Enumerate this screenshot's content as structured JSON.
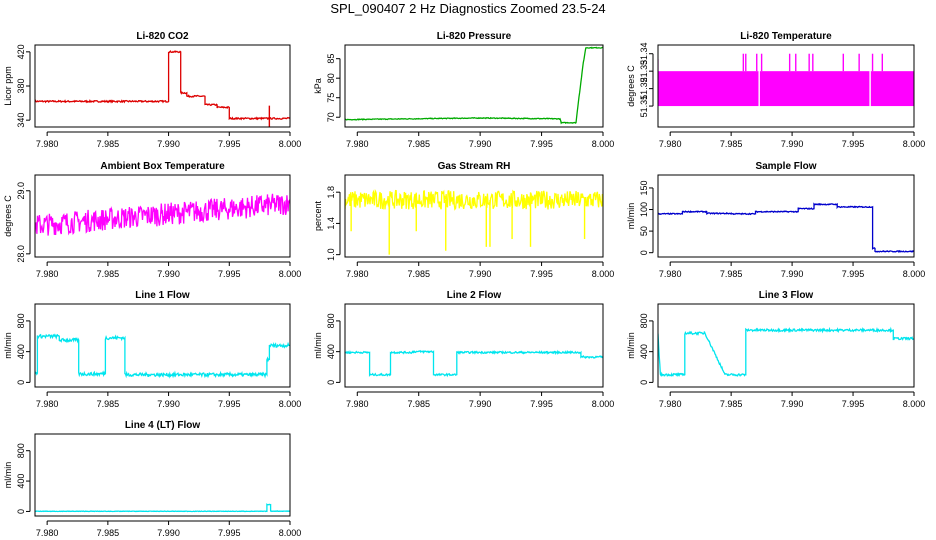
{
  "page": {
    "title": "SPL_090407  2 Hz Diagnostics Zoomed 23.5-24"
  },
  "chart_data": [
    {
      "type": "line",
      "title": "Li-820 CO2",
      "ylabel": "Licor ppm",
      "xlim": [
        7.979,
        8.0
      ],
      "xticks": [
        "7.980",
        "7.985",
        "7.990",
        "7.995",
        "8.000"
      ],
      "ylim": [
        332,
        428
      ],
      "yticks": [
        {
          "v": 340,
          "t": "340"
        },
        {
          "v": 380,
          "t": "380"
        },
        {
          "v": 420,
          "t": "420"
        }
      ],
      "color": "#dd0000",
      "style": "noisy",
      "noise": 0.9,
      "series": [
        {
          "name": "CO2",
          "x": [
            7.979,
            7.99,
            7.99,
            7.991,
            7.991,
            7.9915,
            7.9915,
            7.993,
            7.993,
            7.994,
            7.994,
            7.995,
            7.995,
            8.0
          ],
          "y": [
            362,
            362,
            420,
            420,
            372,
            372,
            368,
            368,
            358,
            358,
            355,
            355,
            342,
            342
          ]
        }
      ],
      "spikes": [
        {
          "x": 7.9983,
          "y0": 332,
          "y1": 357
        }
      ]
    },
    {
      "type": "line",
      "title": "Li-820 Pressure",
      "ylabel": "kPa",
      "xlim": [
        7.979,
        8.0
      ],
      "xticks": [
        "7.980",
        "7.985",
        "7.990",
        "7.995",
        "8.000"
      ],
      "ylim": [
        67.5,
        88.5
      ],
      "yticks": [
        {
          "v": 70,
          "t": "70"
        },
        {
          "v": 75,
          "t": "75"
        },
        {
          "v": 80,
          "t": "80"
        },
        {
          "v": 85,
          "t": "85"
        }
      ],
      "color": "#00aa00",
      "style": "noisy",
      "noise": 0.1,
      "series": [
        {
          "name": "Pressure",
          "x": [
            7.979,
            7.99,
            7.9965,
            7.9966,
            7.9978,
            7.998,
            7.9984,
            7.9986,
            8.0
          ],
          "y": [
            69.4,
            69.8,
            69.6,
            68.6,
            68.6,
            74,
            84,
            87.8,
            87.8
          ]
        }
      ]
    },
    {
      "type": "band",
      "title": "Li-820 Temperature",
      "ylabel": "degrees C",
      "xlim": [
        7.979,
        8.0
      ],
      "xticks": [
        "7.980",
        "7.985",
        "7.990",
        "7.995",
        "8.000"
      ],
      "ylim": [
        51.298,
        51.345
      ],
      "yticks": [
        {
          "v": 51.31,
          "t": "51.31"
        },
        {
          "v": 51.32,
          "t": "51.32"
        },
        {
          "v": 51.33,
          "t": "51.33"
        },
        {
          "v": 51.34,
          "t": "51.34"
        }
      ],
      "color": "#ff00ff",
      "band": {
        "x0": 7.979,
        "x1": 8.0,
        "lo": 51.31,
        "hi": 51.33
      },
      "spikes": [
        7.986,
        7.9862,
        7.9871,
        7.9875,
        7.9898,
        7.9903,
        7.9914,
        7.9917,
        7.9942,
        7.9955,
        7.9966,
        7.9974
      ],
      "spikes_high": 51.34,
      "gaps": [
        7.9873,
        7.9964
      ]
    },
    {
      "type": "line",
      "title": "Ambient Box Temperature",
      "ylabel": "degrees C",
      "xlim": [
        7.979,
        8.0
      ],
      "xticks": [
        "7.980",
        "7.985",
        "7.990",
        "7.995",
        "8.000"
      ],
      "ylim": [
        27.95,
        29.25
      ],
      "yticks": [
        {
          "v": 28.0,
          "t": "28.0"
        },
        {
          "v": 29.0,
          "t": "29.0"
        }
      ],
      "color": "#ff00ff",
      "style": "noisy",
      "noise": 0.18,
      "series": [
        {
          "name": "Box temp",
          "x": [
            7.979,
            8.0
          ],
          "y": [
            28.45,
            28.8
          ]
        }
      ]
    },
    {
      "type": "line",
      "title": "Gas Stream RH",
      "ylabel": "percent",
      "xlim": [
        7.979,
        8.0
      ],
      "xticks": [
        "7.980",
        "7.985",
        "7.990",
        "7.995",
        "8.000"
      ],
      "ylim": [
        0.97,
        2.02
      ],
      "yticks": [
        {
          "v": 1.0,
          "t": "1.0"
        },
        {
          "v": 1.4,
          "t": "1.4"
        },
        {
          "v": 1.8,
          "t": "1.8"
        }
      ],
      "color": "#ffff00",
      "style": "noisy",
      "noise": 0.12,
      "series": [
        {
          "name": "RH",
          "x": [
            7.979,
            8.0
          ],
          "y": [
            1.7,
            1.7
          ]
        }
      ],
      "spikes": [
        {
          "x": 7.9795,
          "y0": 1.3,
          "y1": 1.7
        },
        {
          "x": 7.9826,
          "y0": 1.0,
          "y1": 1.7
        },
        {
          "x": 7.9848,
          "y0": 1.3,
          "y1": 1.7
        },
        {
          "x": 7.9872,
          "y0": 1.05,
          "y1": 1.7
        },
        {
          "x": 7.9905,
          "y0": 1.1,
          "y1": 1.7
        },
        {
          "x": 7.9908,
          "y0": 1.1,
          "y1": 1.7
        },
        {
          "x": 7.9926,
          "y0": 1.2,
          "y1": 1.7
        },
        {
          "x": 7.9941,
          "y0": 1.1,
          "y1": 1.7
        },
        {
          "x": 7.9985,
          "y0": 1.2,
          "y1": 1.7
        }
      ]
    },
    {
      "type": "line",
      "title": "Sample Flow",
      "ylabel": "ml/min",
      "xlim": [
        7.979,
        8.0
      ],
      "xticks": [
        "7.980",
        "7.985",
        "7.990",
        "7.995",
        "8.000"
      ],
      "ylim": [
        -10,
        180
      ],
      "yticks": [
        {
          "v": 0,
          "t": "0"
        },
        {
          "v": 50,
          "t": "50"
        },
        {
          "v": 100,
          "t": "100"
        },
        {
          "v": 150,
          "t": "150"
        }
      ],
      "color": "#0000cc",
      "style": "noisy",
      "noise": 1.2,
      "series": [
        {
          "name": "Sample flow",
          "x": [
            7.979,
            7.981,
            7.981,
            7.983,
            7.983,
            7.985,
            7.985,
            7.987,
            7.987,
            7.9905,
            7.9905,
            7.9918,
            7.9918,
            7.9937,
            7.9937,
            7.9966,
            7.9966,
            7.9968,
            7.9968,
            8.0
          ],
          "y": [
            90,
            90,
            95,
            95,
            91,
            91,
            90,
            90,
            95,
            95,
            102,
            102,
            112,
            112,
            106,
            106,
            10,
            10,
            3,
            3
          ]
        }
      ]
    },
    {
      "type": "line",
      "title": "Line 1 Flow",
      "ylabel": "ml/min",
      "xlim": [
        7.979,
        8.0
      ],
      "xticks": [
        "7.980",
        "7.985",
        "7.990",
        "7.995",
        "8.000"
      ],
      "ylim": [
        -60,
        1020
      ],
      "yticks": [
        {
          "v": 0,
          "t": "0"
        },
        {
          "v": 400,
          "t": "400"
        },
        {
          "v": 800,
          "t": "800"
        }
      ],
      "color": "#00e5ee",
      "style": "noisy",
      "noise": 22,
      "series": [
        {
          "name": "Line 1",
          "x": [
            7.979,
            7.9792,
            7.9792,
            7.981,
            7.981,
            7.9826,
            7.9826,
            7.9845,
            7.9845,
            7.9848,
            7.9848,
            7.9864,
            7.9864,
            7.9883,
            7.9883,
            7.9981,
            7.9981,
            7.9983,
            7.9983,
            8.0
          ],
          "y": [
            120,
            120,
            600,
            600,
            550,
            550,
            110,
            110,
            115,
            115,
            580,
            580,
            100,
            100,
            100,
            100,
            300,
            300,
            480,
            480
          ]
        }
      ]
    },
    {
      "type": "line",
      "title": "Line 2 Flow",
      "ylabel": "ml/min",
      "xlim": [
        7.979,
        8.0
      ],
      "xticks": [
        "7.980",
        "7.985",
        "7.990",
        "7.995",
        "8.000"
      ],
      "ylim": [
        -60,
        1020
      ],
      "yticks": [
        {
          "v": 0,
          "t": "0"
        },
        {
          "v": 400,
          "t": "400"
        },
        {
          "v": 800,
          "t": "800"
        }
      ],
      "color": "#00e5ee",
      "style": "noisy",
      "noise": 12,
      "series": [
        {
          "name": "Line 2",
          "x": [
            7.979,
            7.981,
            7.981,
            7.9827,
            7.9827,
            7.9845,
            7.9845,
            7.9862,
            7.9862,
            7.9881,
            7.9881,
            7.9982,
            7.9982,
            8.0
          ],
          "y": [
            390,
            390,
            100,
            100,
            390,
            390,
            400,
            400,
            100,
            100,
            390,
            390,
            330,
            330
          ]
        }
      ]
    },
    {
      "type": "line",
      "title": "Line 3 Flow",
      "ylabel": "ml/min",
      "xlim": [
        7.979,
        8.0
      ],
      "xticks": [
        "7.980",
        "7.985",
        "7.990",
        "7.995",
        "8.000"
      ],
      "ylim": [
        -60,
        1020
      ],
      "yticks": [
        {
          "v": 0,
          "t": "0"
        },
        {
          "v": 400,
          "t": "400"
        },
        {
          "v": 800,
          "t": "800"
        }
      ],
      "color": "#00e5ee",
      "style": "noisy",
      "noise": 15,
      "series": [
        {
          "name": "Line 3",
          "x": [
            7.979,
            7.9792,
            7.9792,
            7.9812,
            7.9812,
            7.9828,
            7.9828,
            7.9845,
            7.9845,
            7.9862,
            7.9862,
            7.9983,
            7.9983,
            8.0
          ],
          "y": [
            620,
            100,
            100,
            100,
            640,
            640,
            660,
            100,
            100,
            100,
            680,
            680,
            570,
            570
          ]
        }
      ]
    },
    {
      "type": "line",
      "title": "Line 4 (LT) Flow",
      "ylabel": "ml/min",
      "xlim": [
        7.979,
        8.0
      ],
      "xticks": [
        "7.980",
        "7.985",
        "7.990",
        "7.995",
        "8.000"
      ],
      "ylim": [
        -60,
        1020
      ],
      "yticks": [
        {
          "v": 0,
          "t": "0"
        },
        {
          "v": 400,
          "t": "400"
        },
        {
          "v": 800,
          "t": "800"
        }
      ],
      "color": "#00e5ee",
      "style": "noisy",
      "noise": 3,
      "series": [
        {
          "name": "Line 4",
          "x": [
            7.979,
            7.9981,
            7.9981,
            7.9984,
            7.9984,
            8.0
          ],
          "y": [
            2,
            2,
            90,
            90,
            4,
            4
          ]
        }
      ]
    }
  ]
}
